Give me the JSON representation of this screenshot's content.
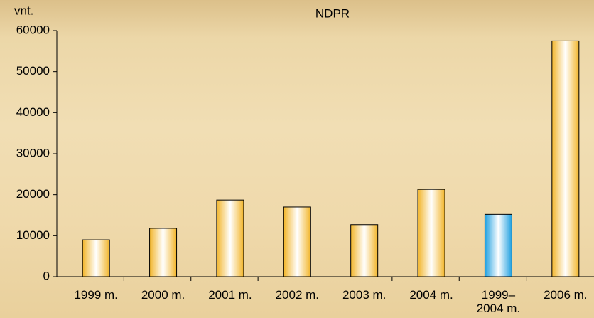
{
  "chart_data": {
    "type": "bar",
    "title": "NDPR",
    "y_label": "vnt.",
    "categories": [
      "1999 m.",
      "2000 m.",
      "2001 m.",
      "2002 m.",
      "2003 m.",
      "2004 m.",
      "1999–\n2004 m.",
      "2006 m."
    ],
    "values": [
      9000,
      11800,
      18700,
      17000,
      12700,
      21300,
      15200,
      57500
    ],
    "colors": [
      "#f2b52a",
      "#f2b52a",
      "#f2b52a",
      "#f2b52a",
      "#f2b52a",
      "#f2b52a",
      "#1e9fe0",
      "#f2b52a"
    ],
    "ylim": [
      0,
      60000
    ],
    "yticks": [
      0,
      10000,
      20000,
      30000,
      40000,
      50000,
      60000
    ],
    "grid": false
  }
}
